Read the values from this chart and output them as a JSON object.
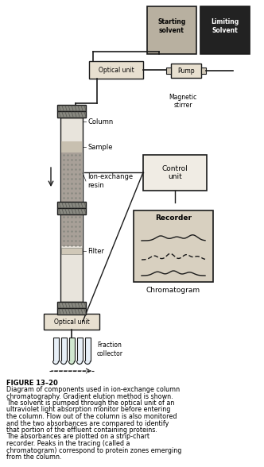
{
  "title": "FIGURE 13-20",
  "caption": "Diagram of components used in ion-exchange column chromatography. Gradient elution method is shown. The solvent is pumped through the optical unit of an ultraviolet light absorption monitor before entering the column. Flow out of the column is also monitored and the two absorbances are compared to identify that portion of the effluent containing proteins. The absorbances are plotted on a strip-chart recorder. Peaks in the tracing (called a chromatogram) correspond to protein zones emerging from the column.",
  "labels": {
    "starting_solvent": "Starting\nsolvent",
    "limiting_solvent": "Limiting\nSolvent",
    "optical_unit_top": "Optical unit",
    "pump": "Pump",
    "magnetic_stirrer": "Magnetic\nstirrer",
    "column": "Column",
    "sample": "Sample",
    "ion_exchange": "Ion-exchange\nresin",
    "filter": "Filter",
    "control_unit": "Control\nunit",
    "recorder": "Recorder",
    "chromatogram": "Chromatogram",
    "optical_unit_bottom": "Optical unit",
    "fraction_collector": "Fraction\ncollector"
  },
  "bg_color": "#f0ece4",
  "box_color": "#c8c0b0",
  "column_fill": "#b0a898",
  "dark_color": "#1a1a1a",
  "recorder_bg": "#d8d0c0"
}
